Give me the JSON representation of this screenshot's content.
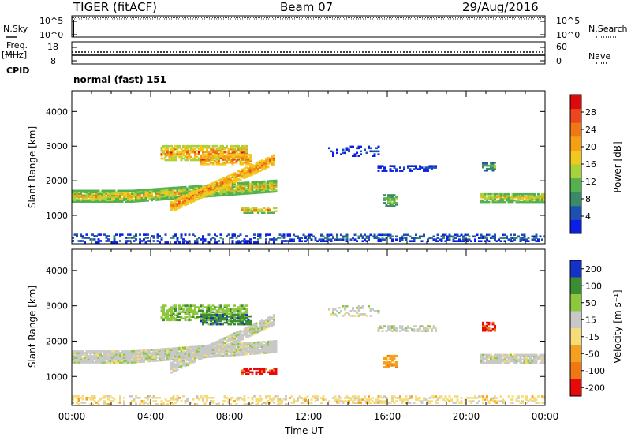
{
  "header": {
    "title": "TIGER (fitACF)",
    "beam": "Beam 07",
    "date": "29/Aug/2016"
  },
  "top_panels": {
    "nsky": {
      "label": "N.Sky",
      "ticks": [
        "10^5",
        "10^0"
      ]
    },
    "nsearch": {
      "label": "N.Search",
      "ticks": [
        "10^5",
        "10^0"
      ]
    },
    "freq": {
      "label_1": "Freq.",
      "label_2": "[MHz]",
      "ticks": [
        "18",
        "8"
      ]
    },
    "nave": {
      "label": "Nave",
      "ticks": [
        "60",
        "0"
      ]
    },
    "cpid": {
      "label": "CPID",
      "mode": "normal (fast) 151"
    }
  },
  "colors": {
    "power": [
      "#0a1ee6",
      "#1e50b4",
      "#3a8a6a",
      "#55b050",
      "#a8d23c",
      "#f0c81e",
      "#f5a014",
      "#f07814",
      "#eb461e",
      "#dc0a0a"
    ],
    "velocity": [
      "#1432c8",
      "#3c8c32",
      "#8cc83c",
      "#c8c8c8",
      "#f5dc78",
      "#f5a01e",
      "#f07814",
      "#e60a0a"
    ]
  },
  "chart_data": [
    {
      "type": "heatmap",
      "name": "power",
      "ylabel": "Slant Range [km]",
      "xlim": [
        0,
        24
      ],
      "ylim": [
        180,
        4600
      ],
      "yticks": [
        1000,
        2000,
        3000,
        4000
      ],
      "colorbar": {
        "label": "Power [dB]",
        "ticks": [
          4,
          8,
          12,
          16,
          20,
          24,
          28
        ],
        "range": [
          0,
          32
        ]
      },
      "xtick_labels": [
        "00:00",
        "04:00",
        "08:00",
        "12:00",
        "16:00",
        "20:00",
        "00:00"
      ],
      "xlabel": "Time UT"
    },
    {
      "type": "heatmap",
      "name": "velocity",
      "ylabel": "Slant Range [km]",
      "xlim": [
        0,
        24
      ],
      "ylim": [
        180,
        4600
      ],
      "yticks": [
        1000,
        2000,
        3000,
        4000
      ],
      "colorbar": {
        "label": "Velocity [m s⁻¹]",
        "ticks": [
          200,
          100,
          50,
          15,
          -15,
          -50,
          -100,
          -200
        ]
      },
      "xtick_labels": [
        "00:00",
        "04:00",
        "08:00",
        "12:00",
        "16:00",
        "20:00",
        "00:00"
      ],
      "xlabel": "Time UT"
    }
  ]
}
